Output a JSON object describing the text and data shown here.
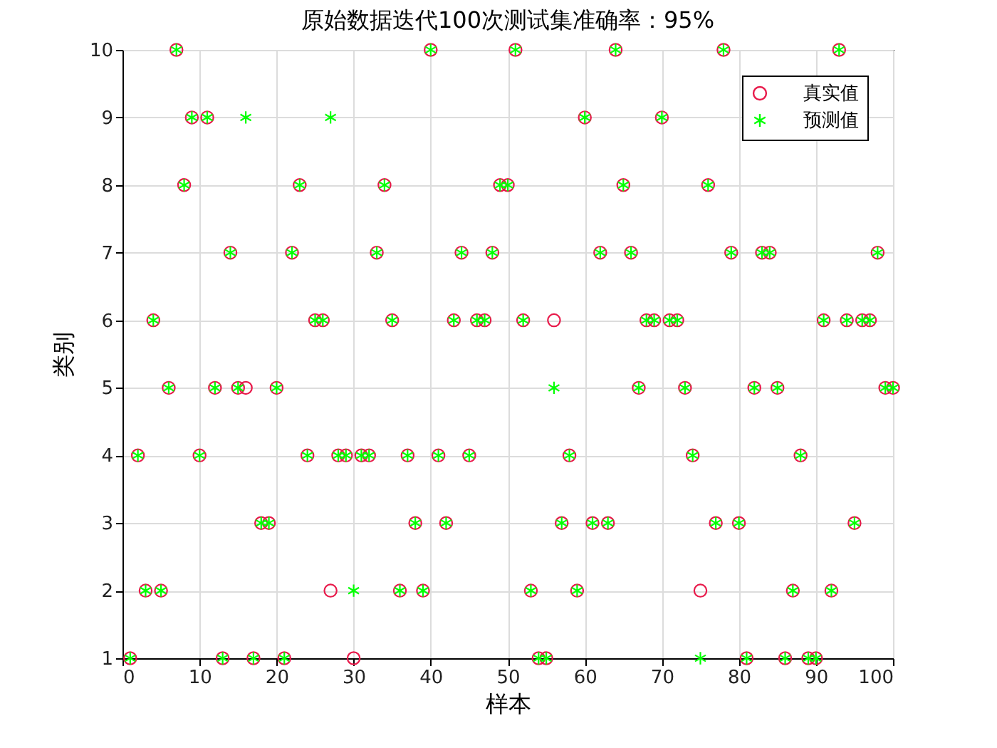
{
  "chart_data": {
    "type": "scatter",
    "title": "原始数据迭代100次测试集准确率：95%",
    "xlabel": "样本",
    "ylabel": "类别",
    "x": [
      1,
      2,
      3,
      4,
      5,
      6,
      7,
      8,
      9,
      10,
      11,
      12,
      13,
      14,
      15,
      16,
      17,
      18,
      19,
      20,
      21,
      22,
      23,
      24,
      25,
      26,
      27,
      28,
      29,
      30,
      31,
      32,
      33,
      34,
      35,
      36,
      37,
      38,
      39,
      40,
      41,
      42,
      43,
      44,
      45,
      46,
      47,
      48,
      49,
      50,
      51,
      52,
      53,
      54,
      55,
      56,
      57,
      58,
      59,
      60,
      61,
      62,
      63,
      64,
      65,
      66,
      67,
      68,
      69,
      70,
      71,
      72,
      73,
      74,
      75,
      76,
      77,
      78,
      79,
      80,
      81,
      82,
      83,
      84,
      85,
      86,
      87,
      88,
      89,
      90,
      91,
      92,
      93,
      94,
      95,
      96,
      97,
      98,
      99,
      100
    ],
    "series": [
      {
        "name": "真实值",
        "color": "#e8194a",
        "marker": "circle",
        "values": [
          1,
          4,
          2,
          6,
          2,
          5,
          10,
          8,
          9,
          4,
          9,
          5,
          1,
          7,
          5,
          5,
          1,
          3,
          3,
          5,
          1,
          7,
          8,
          4,
          6,
          6,
          2,
          4,
          4,
          1,
          4,
          4,
          7,
          8,
          6,
          2,
          4,
          3,
          2,
          10,
          4,
          3,
          6,
          7,
          4,
          6,
          6,
          7,
          8,
          8,
          10,
          6,
          2,
          1,
          1,
          6,
          3,
          4,
          2,
          9,
          3,
          7,
          3,
          10,
          8,
          7,
          5,
          6,
          6,
          9,
          6,
          6,
          5,
          4,
          2,
          8,
          3,
          10,
          7,
          3,
          1,
          5,
          7,
          7,
          5,
          1,
          2,
          4,
          1,
          1,
          6,
          2,
          10,
          6,
          3,
          6,
          6,
          7,
          5,
          5
        ]
      },
      {
        "name": "预测值",
        "color": "#00ff00",
        "marker": "cross",
        "values": [
          1,
          4,
          2,
          6,
          2,
          5,
          10,
          8,
          9,
          4,
          9,
          5,
          1,
          7,
          5,
          9,
          1,
          3,
          3,
          5,
          1,
          7,
          8,
          4,
          6,
          6,
          9,
          4,
          4,
          2,
          4,
          4,
          7,
          8,
          6,
          2,
          4,
          3,
          2,
          10,
          4,
          3,
          6,
          7,
          4,
          6,
          6,
          7,
          8,
          8,
          10,
          6,
          2,
          1,
          1,
          5,
          3,
          4,
          2,
          9,
          3,
          7,
          3,
          10,
          8,
          7,
          5,
          6,
          6,
          9,
          6,
          6,
          5,
          4,
          1,
          8,
          3,
          10,
          7,
          3,
          1,
          5,
          7,
          7,
          5,
          1,
          2,
          4,
          1,
          1,
          6,
          2,
          10,
          6,
          3,
          6,
          6,
          7,
          5,
          5
        ]
      }
    ],
    "xlim": [
      0,
      100
    ],
    "xticks": [
      0,
      10,
      20,
      30,
      40,
      50,
      60,
      70,
      80,
      90,
      100
    ],
    "ylim": [
      1,
      10
    ],
    "yticks": [
      1,
      2,
      3,
      4,
      5,
      6,
      7,
      8,
      9,
      10
    ],
    "grid": true,
    "legend": "top right"
  }
}
